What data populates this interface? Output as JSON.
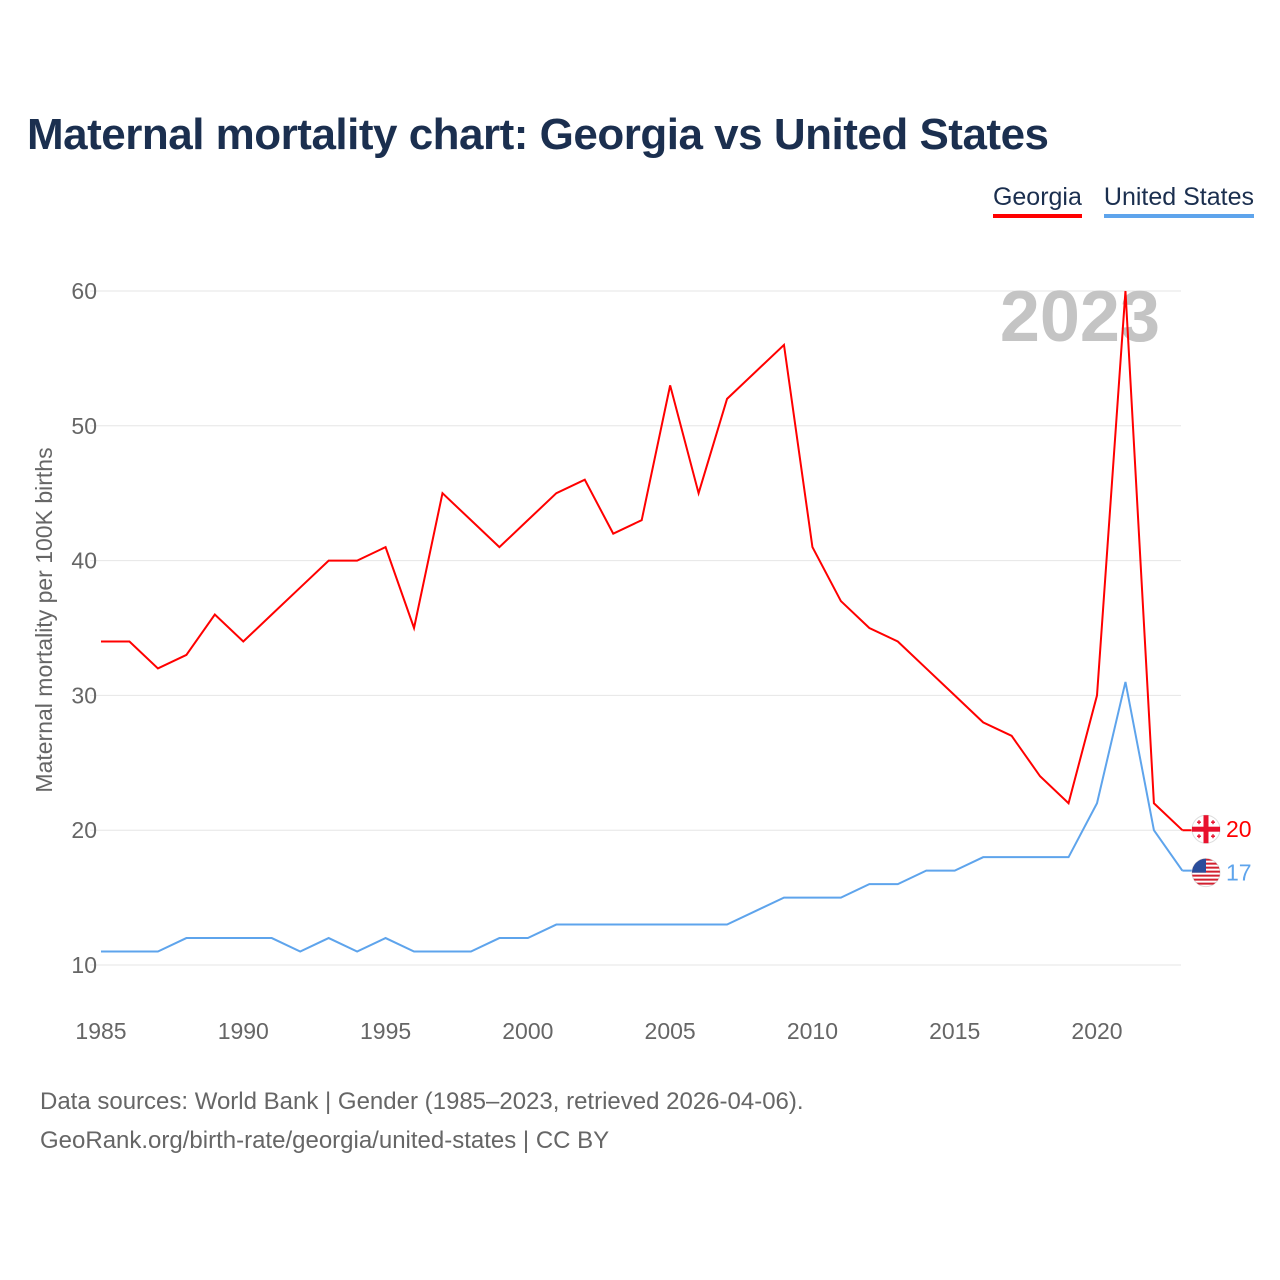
{
  "title": "Maternal mortality chart: Georgia vs United States",
  "footer": {
    "line1": "Data sources: World Bank | Gender (1985–2023, retrieved 2026-04-06).",
    "line2": "GeoRank.org/birth-rate/georgia/united-states | CC BY"
  },
  "chart_data": {
    "type": "line",
    "title": "Maternal mortality chart: Georgia vs United States",
    "xlabel": "",
    "ylabel": "Maternal mortality per 100K births",
    "year_label": "2023",
    "xlim": [
      1985,
      2023
    ],
    "ylim": [
      10,
      60
    ],
    "x_ticks": [
      "1985",
      "1990",
      "1995",
      "2000",
      "2005",
      "2010",
      "2015",
      "2020"
    ],
    "y_ticks": [
      "10",
      "20",
      "30",
      "40",
      "50",
      "60"
    ],
    "grid": true,
    "legend_position": "top-right",
    "x": [
      1985,
      1986,
      1987,
      1988,
      1989,
      1990,
      1991,
      1992,
      1993,
      1994,
      1995,
      1996,
      1997,
      1998,
      1999,
      2000,
      2001,
      2002,
      2003,
      2004,
      2005,
      2006,
      2007,
      2008,
      2009,
      2010,
      2011,
      2012,
      2013,
      2014,
      2015,
      2016,
      2017,
      2018,
      2019,
      2020,
      2021,
      2022,
      2023
    ],
    "series": [
      {
        "name": "Georgia",
        "color": "#ff0000",
        "end_label": "20",
        "values": [
          34,
          34,
          32,
          33,
          36,
          34,
          36,
          38,
          40,
          40,
          41,
          35,
          45,
          43,
          41,
          43,
          45,
          46,
          42,
          43,
          53,
          45,
          52,
          54,
          56,
          41,
          37,
          35,
          34,
          32,
          30,
          28,
          27,
          24,
          22,
          30,
          60,
          22,
          20
        ]
      },
      {
        "name": "United States",
        "color": "#5ea4ec",
        "end_label": "17",
        "values": [
          11,
          11,
          11,
          12,
          12,
          12,
          12,
          11,
          12,
          11,
          12,
          11,
          11,
          11,
          12,
          12,
          13,
          13,
          13,
          13,
          13,
          13,
          13,
          14,
          15,
          15,
          15,
          16,
          16,
          17,
          17,
          18,
          18,
          18,
          18,
          22,
          31,
          20,
          17
        ]
      }
    ]
  }
}
